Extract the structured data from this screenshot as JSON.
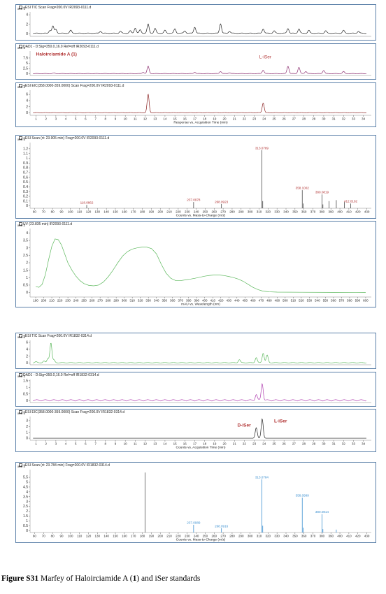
{
  "caption": {
    "label": "Figure S31",
    "text_a": " Marfey of Haloirciamide A (",
    "num": "1",
    "text_b": ") and iSer standards"
  },
  "chart_data": [
    {
      "type": "line",
      "title": "+ESI TIC Scan Frag=200.0V IR2093-0111.d",
      "y_exp": "x10 6",
      "x_axis": "time",
      "xlim": [
        0.4,
        34.8
      ],
      "ylim": [
        -0.5,
        4.6
      ],
      "yticks": [
        0,
        2,
        4
      ],
      "series": [
        {
          "color": "#222222",
          "baseline": 0.15,
          "peaks": [
            [
              2.4,
              0.6
            ],
            [
              2.7,
              1.5
            ],
            [
              3.0,
              0.8
            ],
            [
              4.5,
              0.6
            ],
            [
              7.5,
              0.4
            ],
            [
              9.5,
              0.4
            ],
            [
              10.5,
              0.5
            ],
            [
              11.0,
              1.1
            ],
            [
              11.5,
              0.7
            ],
            [
              12.3,
              1.9
            ],
            [
              13.0,
              1.0
            ],
            [
              14.0,
              0.6
            ],
            [
              15.0,
              0.9
            ],
            [
              16.0,
              0.5
            ],
            [
              17.0,
              1.3
            ],
            [
              19.6,
              2.0
            ],
            [
              20.5,
              0.4
            ],
            [
              23.9,
              0.9
            ],
            [
              25.0,
              0.5
            ],
            [
              26.4,
              1.0
            ],
            [
              27.5,
              0.9
            ],
            [
              28.5,
              0.6
            ],
            [
              30.2,
              0.5
            ],
            [
              32.0,
              0.6
            ],
            [
              33.5,
              0.4
            ]
          ]
        }
      ]
    },
    {
      "type": "line",
      "title": "DAD1 - D:Sig=350.0,16.0  Ref=off IR2093-0111.d",
      "y_exp": "x10 2",
      "x_axis": "time",
      "xlim": [
        0.4,
        34.8
      ],
      "ylim": [
        -0.8,
        10.8
      ],
      "yticks": [
        0,
        2.5,
        5,
        7.5
      ],
      "labels": [
        {
          "text": "Haloirciamide A (1)",
          "x": 1.0,
          "y": 8.6,
          "color": "#b03030",
          "bold": true
        },
        {
          "text": "L-iSer",
          "x": 23.5,
          "y": 7.3,
          "color": "#b03030",
          "bold": false
        }
      ],
      "series": [
        {
          "color": "#8a2b6e",
          "baseline": 0.1,
          "peaks": [
            [
              2.8,
              0.3
            ],
            [
              11.8,
              0.6
            ],
            [
              12.3,
              3.5
            ],
            [
              17.0,
              0.6
            ],
            [
              19.6,
              1.0
            ],
            [
              20.5,
              0.4
            ],
            [
              23.9,
              1.6
            ],
            [
              26.4,
              3.5
            ],
            [
              27.5,
              3.0
            ],
            [
              28.2,
              1.0
            ],
            [
              30.0,
              1.5
            ],
            [
              32.0,
              1.0
            ]
          ]
        }
      ]
    },
    {
      "type": "line",
      "title": "+ESI EIC(358.0000-359.0000) Scan Frag=200.0V IR2093-0111.d",
      "y_exp": "x10 4",
      "x_axis": "time",
      "xlim": [
        0.4,
        34.8
      ],
      "ylim": [
        -0.8,
        7.4
      ],
      "yticks": [
        0,
        2,
        4,
        6
      ],
      "xticks": [
        1,
        2,
        3,
        4,
        5,
        6,
        7,
        8,
        9,
        10,
        11,
        12,
        13,
        14,
        15,
        16,
        17,
        18,
        19,
        20,
        21,
        22,
        23,
        24,
        25,
        26,
        27,
        28,
        29,
        30,
        31,
        32,
        33,
        34
      ],
      "xlabel": "Response vs. Acquisition Time (min)",
      "series": [
        {
          "color": "#8b2323",
          "baseline": 0.05,
          "peaks": [
            [
              12.3,
              6.0
            ],
            [
              23.9,
              3.2
            ]
          ]
        }
      ]
    },
    {
      "type": "bar",
      "title": "+ESI Scan (rt: 23.905 min) Frag=200.0V IR2093-0111.d",
      "y_exp": "x10 5",
      "x_axis": "mz",
      "xlim": [
        55,
        435
      ],
      "ylim": [
        -0.05,
        1.33
      ],
      "yticks": [
        0,
        0.1,
        0.2,
        0.3,
        0.4,
        0.5,
        0.6,
        0.7,
        0.8,
        0.9,
        1,
        1.1,
        1.2
      ],
      "xticks": [
        60,
        70,
        80,
        90,
        100,
        110,
        120,
        130,
        140,
        150,
        160,
        170,
        180,
        190,
        200,
        210,
        220,
        230,
        240,
        250,
        260,
        270,
        280,
        290,
        300,
        310,
        320,
        330,
        340,
        350,
        360,
        370,
        380,
        390,
        400,
        410,
        420,
        430
      ],
      "xlabel": "Counts vs. Mass-to-Charge (m/z)",
      "bar_color": "#4a4a4a",
      "label_color": "#b03030",
      "peaks": [
        [
          118.0862,
          0.02,
          "118.0862"
        ],
        [
          237.0978,
          0.08,
          "237.0978"
        ],
        [
          268.0923,
          0.04,
          "268.0923"
        ],
        [
          313.0789,
          1.17,
          "313.0789"
        ],
        [
          314.08,
          0.1,
          ""
        ],
        [
          358.1002,
          0.33,
          "358.1002"
        ],
        [
          359.1,
          0.05,
          ""
        ],
        [
          380.0819,
          0.24,
          "380.0819"
        ],
        [
          381.1,
          0.03,
          ""
        ],
        [
          388,
          0.1,
          ""
        ],
        [
          396,
          0.12,
          ""
        ],
        [
          405,
          0.08,
          ""
        ],
        [
          412.0192,
          0.05,
          "412.0192"
        ]
      ]
    },
    {
      "type": "line",
      "title": "UV (23.835 min) IR2093-0111.d",
      "y_exp": "x10 2",
      "x_axis": "wl",
      "xlim": [
        183,
        607
      ],
      "ylim": [
        -0.3,
        4.3
      ],
      "yticks": [
        0,
        0.5,
        1,
        1.5,
        2,
        2.5,
        3,
        3.5,
        4
      ],
      "xticks": [
        190,
        200,
        210,
        220,
        230,
        240,
        250,
        260,
        270,
        280,
        290,
        300,
        310,
        320,
        330,
        340,
        350,
        360,
        370,
        380,
        390,
        400,
        410,
        420,
        430,
        440,
        450,
        460,
        470,
        480,
        490,
        500,
        510,
        520,
        530,
        540,
        550,
        560,
        570,
        580,
        590,
        600
      ],
      "xlabel": "mAU vs. Wavelength (nm)",
      "series": [
        {
          "color": "#5cb85c",
          "points": [
            [
              190,
              0.4
            ],
            [
              194,
              0.35
            ],
            [
              198,
              0.55
            ],
            [
              202,
              1.2
            ],
            [
              206,
              2.2
            ],
            [
              210,
              3.1
            ],
            [
              214,
              3.6
            ],
            [
              218,
              3.55
            ],
            [
              222,
              3.2
            ],
            [
              226,
              2.6
            ],
            [
              230,
              2.0
            ],
            [
              235,
              1.5
            ],
            [
              240,
              1.1
            ],
            [
              245,
              0.8
            ],
            [
              250,
              0.6
            ],
            [
              256,
              0.48
            ],
            [
              262,
              0.45
            ],
            [
              268,
              0.5
            ],
            [
              274,
              0.7
            ],
            [
              280,
              1.05
            ],
            [
              286,
              1.5
            ],
            [
              292,
              2.0
            ],
            [
              298,
              2.45
            ],
            [
              304,
              2.75
            ],
            [
              310,
              2.92
            ],
            [
              316,
              3.0
            ],
            [
              322,
              3.05
            ],
            [
              328,
              3.05
            ],
            [
              334,
              2.95
            ],
            [
              340,
              2.6
            ],
            [
              346,
              1.9
            ],
            [
              352,
              1.3
            ],
            [
              358,
              0.95
            ],
            [
              364,
              0.8
            ],
            [
              370,
              0.8
            ],
            [
              376,
              0.85
            ],
            [
              382,
              0.9
            ],
            [
              388,
              0.96
            ],
            [
              394,
              1.03
            ],
            [
              400,
              1.1
            ],
            [
              406,
              1.15
            ],
            [
              412,
              1.18
            ],
            [
              418,
              1.18
            ],
            [
              424,
              1.14
            ],
            [
              430,
              1.08
            ],
            [
              436,
              1.0
            ],
            [
              442,
              0.9
            ],
            [
              448,
              0.75
            ],
            [
              454,
              0.55
            ],
            [
              460,
              0.35
            ],
            [
              466,
              0.2
            ],
            [
              472,
              0.1
            ],
            [
              480,
              0.05
            ],
            [
              490,
              0.03
            ],
            [
              520,
              0.02
            ],
            [
              560,
              0.01
            ],
            [
              600,
              0.0
            ]
          ]
        }
      ]
    },
    {
      "type": "line",
      "title": "+ESI TIC Scan Frag=200.0V IR1832-0314.d",
      "y_exp": "x10 6",
      "x_axis": "time",
      "xlim": [
        0.4,
        34.8
      ],
      "ylim": [
        -0.5,
        6.6
      ],
      "yticks": [
        0,
        2,
        4,
        6
      ],
      "series": [
        {
          "color": "#5cb85c",
          "baseline": 0.1,
          "peaks": [
            [
              1.0,
              0.3
            ],
            [
              1.8,
              0.5
            ],
            [
              2.2,
              1.2
            ],
            [
              2.5,
              5.8
            ],
            [
              2.8,
              0.8
            ],
            [
              21.5,
              0.9
            ],
            [
              23.2,
              1.5
            ],
            [
              23.9,
              2.8
            ],
            [
              24.3,
              2.2
            ]
          ]
        }
      ]
    },
    {
      "type": "line",
      "title": "DAD1 - D:Sig=350.0,16.0  Ref=off IR1832-0314.d",
      "y_exp": "x10 2",
      "x_axis": "time",
      "xlim": [
        0.4,
        34.8
      ],
      "ylim": [
        -0.15,
        1.6
      ],
      "yticks": [
        0,
        0.5,
        1,
        1.5
      ],
      "series": [
        {
          "color": "#b03fb0",
          "baseline": 0.02,
          "peaks": [
            [
              23.2,
              0.45
            ],
            [
              23.8,
              1.3
            ]
          ]
        }
      ]
    },
    {
      "type": "line",
      "title": "+ESI EIC(358.0000-359.0000) Scan Frag=200.0V IR1832-0314.d",
      "y_exp": "x10 5",
      "x_axis": "time",
      "xlim": [
        0.4,
        34.8
      ],
      "ylim": [
        -0.35,
        3.7
      ],
      "yticks": [
        0,
        1,
        2,
        3
      ],
      "xticks": [
        1,
        2,
        3,
        4,
        5,
        6,
        7,
        8,
        9,
        10,
        11,
        12,
        13,
        14,
        15,
        16,
        17,
        18,
        19,
        20,
        21,
        22,
        23,
        24,
        25,
        26,
        27,
        28,
        29,
        30,
        31,
        32,
        33,
        34
      ],
      "xlabel": "Counts vs. Acquisition Time (min)",
      "labels": [
        {
          "text": "D-iSer",
          "x": 21.3,
          "y": 2.0,
          "color": "#b03030",
          "bold": true
        },
        {
          "text": "L-iSer",
          "x": 25.0,
          "y": 2.7,
          "color": "#b03030",
          "bold": true
        }
      ],
      "series": [
        {
          "color": "#222222",
          "baseline": 0.0,
          "peaks": [
            [
              23.2,
              1.8
            ],
            [
              23.8,
              3.3
            ]
          ]
        }
      ]
    },
    {
      "type": "bar",
      "title": "+ESI Scan (rt: 23.784 min) Frag=200.0V IR1832-0314.d",
      "y_exp": "x10 4",
      "x_axis": "mz",
      "xlim": [
        55,
        435
      ],
      "ylim": [
        -0.2,
        6.3
      ],
      "yticks": [
        0,
        0.5,
        1,
        1.5,
        2,
        2.5,
        3,
        3.5,
        4,
        4.5,
        5,
        5.5
      ],
      "xticks": [
        60,
        70,
        80,
        90,
        100,
        110,
        120,
        130,
        140,
        150,
        160,
        170,
        180,
        190,
        200,
        210,
        220,
        230,
        240,
        250,
        260,
        270,
        280,
        290,
        300,
        310,
        320,
        330,
        340,
        350,
        360,
        370,
        380,
        390,
        400,
        410,
        420,
        430
      ],
      "xlabel": "Counts vs. Mass-to-Charge (m/z)",
      "bar_color": "#3a8fd0",
      "label_color": "#3a8fd0",
      "peaks": [
        [
          183,
          6.0,
          "",
          true
        ],
        [
          237.0989,
          0.6,
          "237.0989"
        ],
        [
          268.0916,
          0.25,
          "268.0916"
        ],
        [
          313.0784,
          5.3,
          "313.0784"
        ],
        [
          314.08,
          0.5,
          ""
        ],
        [
          358.0999,
          3.4,
          "358.0999"
        ],
        [
          359.1,
          0.3,
          ""
        ],
        [
          380.0814,
          1.7,
          "380.0814"
        ],
        [
          381.1,
          0.15,
          ""
        ],
        [
          396,
          0.1,
          ""
        ]
      ]
    }
  ]
}
